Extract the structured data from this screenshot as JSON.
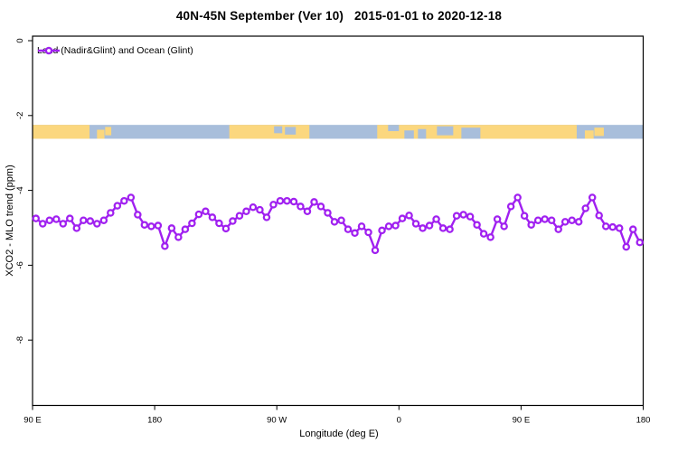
{
  "title": "40N-45N September (Ver 10)   2015-01-01 to 2020-12-18",
  "legend": {
    "label": "Land (Nadir&Glint) and Ocean (Glint)",
    "marker": "open-circle-on-line",
    "marker_color": "#A020F0"
  },
  "axes": {
    "x": {
      "label": "Longitude (deg E)"
    },
    "y": {
      "label": "XCO2 - MLO trend (ppm)"
    }
  },
  "chart_data": {
    "type": "line",
    "title": "40N-45N September (Ver 10)   2015-01-01 to 2020-12-18",
    "xlabel": "Longitude (deg E)",
    "ylabel": "XCO2 - MLO trend (ppm)",
    "grid": false,
    "legend_position": "top-left-inside",
    "x_axis": {
      "tick_labels": [
        "90 E",
        "180",
        "90 W",
        "0",
        "90 E",
        "180"
      ],
      "tick_offsets_deg": [
        0,
        90,
        180,
        270,
        360,
        450
      ],
      "span_deg": [
        0,
        450
      ],
      "note": "longitude displayed starting at 90E heading east, wrapping past 180 and 0 back to 180"
    },
    "y_axis": {
      "tick_values": [
        0,
        -2,
        -4,
        -6,
        -8
      ],
      "range_ppm": [
        -9.85,
        0.1
      ]
    },
    "series": [
      {
        "name": "Land (Nadir&Glint) and Ocean (Glint)",
        "color": "#A020F0",
        "marker": "open-circle",
        "x_start_offset_deg": 2.5,
        "x_step_deg": 5,
        "values": [
          -4.75,
          -4.89,
          -4.8,
          -4.77,
          -4.89,
          -4.75,
          -5.01,
          -4.8,
          -4.82,
          -4.89,
          -4.8,
          -4.6,
          -4.41,
          -4.28,
          -4.19,
          -4.65,
          -4.92,
          -4.96,
          -4.94,
          -5.49,
          -5.01,
          -5.25,
          -5.04,
          -4.88,
          -4.64,
          -4.56,
          -4.72,
          -4.88,
          -5.02,
          -4.82,
          -4.68,
          -4.56,
          -4.45,
          -4.52,
          -4.72,
          -4.38,
          -4.28,
          -4.28,
          -4.3,
          -4.43,
          -4.56,
          -4.31,
          -4.43,
          -4.6,
          -4.84,
          -4.8,
          -5.04,
          -5.14,
          -4.96,
          -5.12,
          -5.6,
          -5.07,
          -4.96,
          -4.94,
          -4.75,
          -4.67,
          -4.89,
          -5.01,
          -4.94,
          -4.77,
          -5.01,
          -5.04,
          -4.68,
          -4.65,
          -4.7,
          -4.92,
          -5.16,
          -5.25,
          -4.77,
          -4.96,
          -4.43,
          -4.19,
          -4.68,
          -4.92,
          -4.8,
          -4.77,
          -4.8,
          -5.04,
          -4.84,
          -4.8,
          -4.84,
          -4.48,
          -4.19,
          -4.67,
          -4.96,
          -4.98,
          -5.01,
          -5.51,
          -5.04,
          -5.39
        ]
      }
    ],
    "map_band": {
      "description": "coastline strip of the 40N-45N latitude band drawn across the longitude axis",
      "ocean_color": "#A8BEDB",
      "land_color": "#FBD77E",
      "band_top_ppm": -2.25,
      "band_bottom_ppm": -2.62,
      "land_segments": [
        {
          "start": 0,
          "end": 42,
          "top": 0,
          "bottom": 1
        },
        {
          "start": 47.5,
          "end": 53,
          "top": 0.35,
          "bottom": 1
        },
        {
          "start": 53.5,
          "end": 58,
          "top": 0.15,
          "bottom": 0.75
        },
        {
          "start": 145,
          "end": 204,
          "top": 0,
          "bottom": 1
        },
        {
          "start": 254,
          "end": 401,
          "top": 0,
          "bottom": 1
        },
        {
          "start": 407,
          "end": 413.5,
          "top": 0.4,
          "bottom": 1
        },
        {
          "start": 414,
          "end": 421,
          "top": 0.2,
          "bottom": 0.8
        }
      ],
      "ocean_patches": [
        {
          "start": 178,
          "end": 184,
          "top": 0.1,
          "bottom": 0.6
        },
        {
          "start": 186,
          "end": 194,
          "top": 0.15,
          "bottom": 0.7
        },
        {
          "start": 262,
          "end": 270,
          "top": 0,
          "bottom": 0.45
        },
        {
          "start": 274,
          "end": 281,
          "top": 0.4,
          "bottom": 1
        },
        {
          "start": 284,
          "end": 290,
          "top": 0.3,
          "bottom": 1
        },
        {
          "start": 298,
          "end": 310,
          "top": 0.1,
          "bottom": 0.75
        },
        {
          "start": 316,
          "end": 330,
          "top": 0.2,
          "bottom": 1
        }
      ]
    }
  }
}
